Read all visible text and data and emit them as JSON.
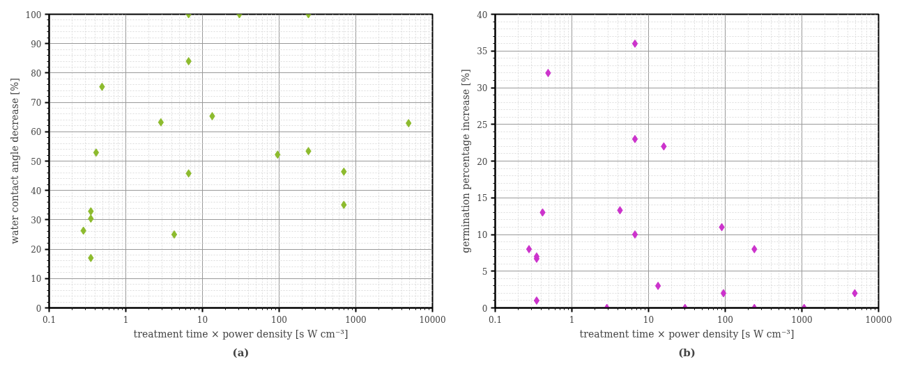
{
  "chart_data": [
    {
      "type": "scatter",
      "xlabel": "treatment time × power density [s W cm⁻³]",
      "ylabel": "water contact angle decrease [%]",
      "annotations": [
        "(a)"
      ],
      "log": "x",
      "grid": true,
      "marker": "diamond",
      "xlim": [
        0.1,
        10000
      ],
      "xticks": [
        0.1,
        1,
        10,
        100,
        1000,
        10000
      ],
      "ylim": [
        0,
        100
      ],
      "yticks": [
        0,
        10,
        20,
        30,
        40,
        50,
        60,
        70,
        80,
        90,
        100
      ],
      "series": [
        {
          "color": "#8dbb2e",
          "x": [
            6.6,
            6.6,
            0.49,
            2.87,
            13.4,
            0.41,
            6.6,
            0.35,
            0.35,
            0.28,
            4.28,
            0.35,
            30.3,
            241,
            4880,
            95.5,
            241,
            698,
            698
          ],
          "values": [
            100,
            84,
            75.3,
            63.2,
            65.3,
            52.9,
            45.8,
            32.9,
            30.4,
            26.3,
            25.0,
            17.0,
            100,
            100,
            62.9,
            52.2,
            53.4,
            46.4,
            35.1
          ]
        }
      ]
    },
    {
      "type": "scatter",
      "xlabel": "treatment time × power density [s W cm⁻³]",
      "ylabel": "germination percentage increase [%]",
      "annotations": [
        "(b)"
      ],
      "log": "x",
      "grid": true,
      "marker": "diamond",
      "xlim": [
        0.1,
        10000
      ],
      "xticks": [
        0.1,
        1,
        10,
        100,
        1000,
        10000
      ],
      "ylim": [
        0,
        40
      ],
      "yticks": [
        0,
        5,
        10,
        15,
        20,
        25,
        30,
        35,
        40
      ],
      "series": [
        {
          "color": "#cc33cc",
          "x": [
            6.65,
            0.49,
            6.65,
            15.8,
            0.415,
            4.24,
            6.65,
            0.276,
            0.347,
            0.347,
            13.3,
            0.347,
            2.86,
            29.9,
            90.2,
            240,
            94.9,
            240,
            1070,
            4900
          ],
          "values": [
            36,
            32,
            23,
            22,
            13,
            13.3,
            10,
            8,
            7,
            6.7,
            3,
            1,
            0,
            0,
            11,
            8,
            2,
            0,
            0,
            2
          ]
        }
      ]
    }
  ]
}
